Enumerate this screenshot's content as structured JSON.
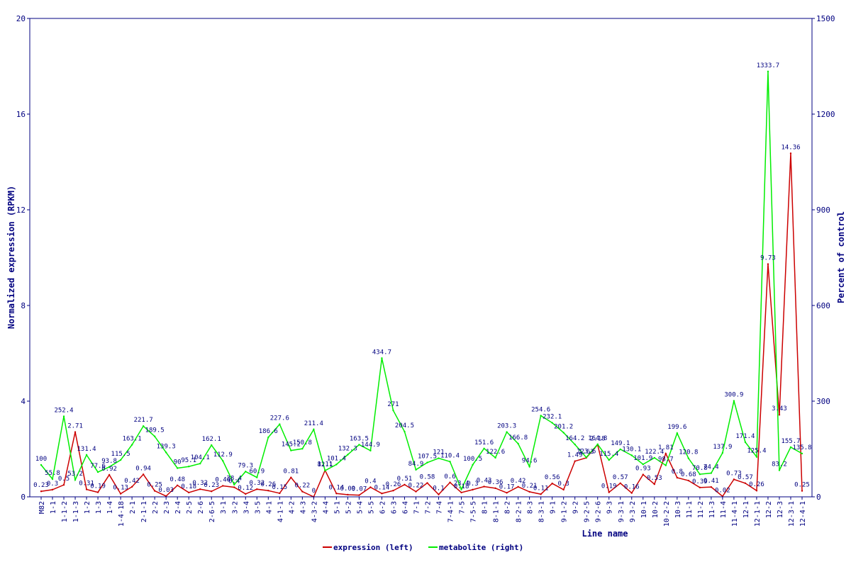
{
  "chart_data": {
    "type": "line",
    "title": "",
    "xlabel": "Line name",
    "ylabel_left": "Normalized expression (RPKM)",
    "ylabel_right": "Percent of control",
    "ylim_left": [
      0,
      20
    ],
    "ylim_right": [
      0,
      1500
    ],
    "yticks_left": [
      "0",
      "4",
      "8",
      "12",
      "16",
      "20"
    ],
    "yticks_right": [
      "0",
      "300",
      "600",
      "900",
      "1200",
      "1500"
    ],
    "grid": false,
    "legend_position": "bottom-center",
    "categories": [
      "M82",
      "1-1",
      "1-1-2",
      "1-1-3",
      "1-2",
      "1-3",
      "1-4",
      "1-4-18",
      "2-1",
      "2-1-1",
      "2-2",
      "2-3",
      "2-4",
      "2-5",
      "2-6",
      "2-6-5",
      "3-1",
      "3-2",
      "3-4",
      "3-5",
      "4-1",
      "4-1-1",
      "4-2",
      "4-3",
      "4-3-2",
      "4-4",
      "5-1",
      "5-2",
      "5-4",
      "5-5",
      "6-2",
      "6-3",
      "6-4",
      "7-1",
      "7-2",
      "7-4",
      "7-4-1",
      "7-5",
      "7-5-5",
      "8-1",
      "8-1-1",
      "8-2",
      "8-2-1",
      "8-3",
      "8-3-1",
      "9-1",
      "9-1-2",
      "9-2",
      "9-2-5",
      "9-2-6",
      "9-3",
      "9-3-1",
      "9-3-2",
      "10-1",
      "10-2",
      "10-2-2",
      "10-3",
      "11-1",
      "11-2",
      "11-3",
      "11-4",
      "11-4-1",
      "12-1",
      "12-1-1",
      "12-2",
      "12-3",
      "12-3-1",
      "12-4-1"
    ],
    "series": [
      {
        "name": "expression (left)",
        "axis": "left",
        "color": "#cc0000",
        "values": [
          0.23,
          0.3,
          0.5,
          2.71,
          0.31,
          0.19,
          0.92,
          0.13,
          0.42,
          0.94,
          0.25,
          0.03,
          0.48,
          0.18,
          0.32,
          0.23,
          0.46,
          0.4,
          0.12,
          0.32,
          0.26,
          0.15,
          0.81,
          0.22,
          0,
          1.11,
          0.14,
          0.09,
          0.07,
          0.4,
          0.14,
          0.26,
          0.51,
          0.22,
          0.58,
          0.1,
          0.6,
          0.18,
          0.3,
          0.43,
          0.36,
          0.17,
          0.42,
          0.21,
          0.11,
          0.56,
          0.3,
          1.49,
          1.63,
          2.18,
          0.19,
          0.57,
          0.16,
          0.93,
          0.53,
          1.81,
          0.8,
          0.68,
          0.39,
          0.41,
          0.02,
          0.73,
          0.57,
          0.26,
          9.73,
          3.43,
          14.36,
          0.25
        ],
        "labels": [
          "0.23",
          "0.3",
          "0.5",
          "2.71",
          "0.31",
          "0.19",
          "0.92",
          "0.13",
          "0.42",
          "0.94",
          "0.25",
          "0.03",
          "0.48",
          "0.18",
          "0.32",
          "0.23",
          "0.46",
          "0.4",
          "0.12",
          "0.32",
          "0.26",
          "0.15",
          "0.81",
          "0.22",
          "0",
          "1.11",
          "0.14",
          "0.09",
          "0.07",
          "0.4",
          "0.14",
          "0.26",
          "0.51",
          "0.22",
          "0.58",
          "0.1",
          "0.6",
          "0.18",
          "0.3",
          "0.43",
          "0.36",
          "0.17",
          "0.42",
          "0.21",
          "0.11",
          "0.56",
          "0.3",
          "1.49",
          "1.63",
          "2.18",
          "0.19",
          "0.57",
          "0.16",
          "0.93",
          "0.53",
          "1.81",
          "0.8",
          "0.68",
          "0.39",
          "0.41",
          "0.02",
          "0.73",
          "0.57",
          "0.26",
          "9.73",
          "3.43",
          "14.36",
          "0.25"
        ]
      },
      {
        "name": "metabolite (right)",
        "axis": "right",
        "color": "#00ee00",
        "values": [
          100,
          55.8,
          252.4,
          53.2,
          131.4,
          77.6,
          93.8,
          115.5,
          163.1,
          221.7,
          189.5,
          139.3,
          90,
          95.1,
          104.1,
          162.1,
          112.9,
          38.4,
          79.3,
          60.9,
          186.6,
          227.6,
          145.2,
          150.8,
          211.4,
          82.1,
          101.4,
          132.3,
          163.5,
          144.9,
          434.7,
          271,
          204.5,
          84.9,
          107.5,
          121,
          110.4,
          23.4,
          100.5,
          151.6,
          122.6,
          203.3,
          166.8,
          94.6,
          254.6,
          232.1,
          201.2,
          164.2,
          123.6,
          164.8,
          115.4,
          149.1,
          130.1,
          101.9,
          122.4,
          98.7,
          199.6,
          120.8,
          70.8,
          74.4,
          137.9,
          300.9,
          171.4,
          125.4,
          1333.7,
          83.2,
          155.7,
          135.8
        ],
        "labels": [
          "100",
          "55.8",
          "252.4",
          "53.2",
          "131.4",
          "77.6",
          "93.8",
          "115.5",
          "163.1",
          "221.7",
          "189.5",
          "139.3",
          "90",
          "95.1",
          "104.1",
          "162.1",
          "112.9",
          "38.4",
          "79.3",
          "60.9",
          "186.6",
          "227.6",
          "145.2",
          "150.8",
          "211.4",
          "82.1",
          "101.4",
          "132.3",
          "163.5",
          "144.9",
          "434.7",
          "271",
          "204.5",
          "84.9",
          "107.5",
          "121",
          "110.4",
          "23.4",
          "100.5",
          "151.6",
          "122.6",
          "203.3",
          "166.8",
          "94.6",
          "254.6",
          "232.1",
          "201.2",
          "164.2",
          "123.6",
          "164.8",
          "115.4",
          "149.1",
          "130.1",
          "101.9",
          "122.4",
          "98.7",
          "199.6",
          "120.8",
          "70.8",
          "74.4",
          "137.9",
          "300.9",
          "171.4",
          "125.4",
          "1333.7",
          "83.2",
          "155.7",
          "135.8"
        ]
      }
    ]
  },
  "colors": {
    "axis": "#000080",
    "expression": "#cc0000",
    "metabolite": "#00ee00"
  }
}
